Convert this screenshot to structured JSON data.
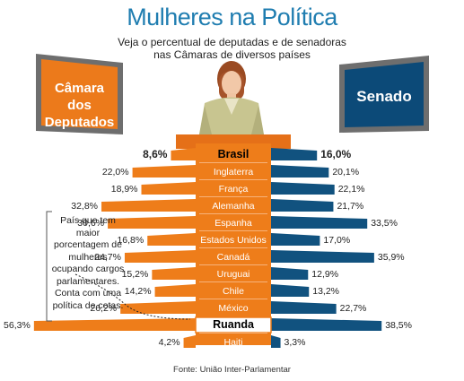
{
  "header": {
    "title": "Mulheres na Política",
    "subtitle_line1": "Veja o percentual de deputadas e de senadoras",
    "subtitle_line2": "nas Câmaras de diversos países"
  },
  "boards": {
    "left_line1": "Câmara dos",
    "left_line2": "Deputados",
    "right": "Senado"
  },
  "note": "País que tem maior porcentagem de mulheres ocupando cargos parlamentares. Conta com uma política de cotas.",
  "source": "Fonte: União Inter-Parlamentar",
  "colors": {
    "orange": "#ee7d1a",
    "blue": "#11527f",
    "title_blue": "#1f7db0",
    "board_orange": "#ec7a1b",
    "board_blue": "#0c4a78"
  },
  "chart_data": {
    "type": "bar",
    "categories": [
      "Brasil",
      "Inglaterra",
      "França",
      "Alemanha",
      "Espanha",
      "Estados Unidos",
      "Canadá",
      "Uruguai",
      "Chile",
      "México",
      "Ruanda",
      "Haiti"
    ],
    "series": [
      {
        "name": "Câmara dos Deputados",
        "values": [
          8.6,
          22.0,
          18.9,
          32.8,
          30.6,
          16.8,
          24.7,
          15.2,
          14.2,
          26.2,
          56.3,
          4.2
        ]
      },
      {
        "name": "Senado",
        "values": [
          16.0,
          20.1,
          22.1,
          21.7,
          33.5,
          17.0,
          35.9,
          12.9,
          13.2,
          22.7,
          38.5,
          3.3
        ]
      }
    ],
    "left_labels": [
      "8,6%",
      "22,0%",
      "18,9%",
      "32,8%",
      "30,6%",
      "16,8%",
      "24,7%",
      "15,2%",
      "14,2%",
      "26,2%",
      "56,3%",
      "4,2%"
    ],
    "right_labels": [
      "16,0%",
      "20,1%",
      "22,1%",
      "21,7%",
      "33,5%",
      "17,0%",
      "35,9%",
      "12,9%",
      "13,2%",
      "22,7%",
      "38,5%",
      "3,3%"
    ],
    "highlight": [
      "Brasil",
      "Ruanda"
    ],
    "unit": "%"
  }
}
